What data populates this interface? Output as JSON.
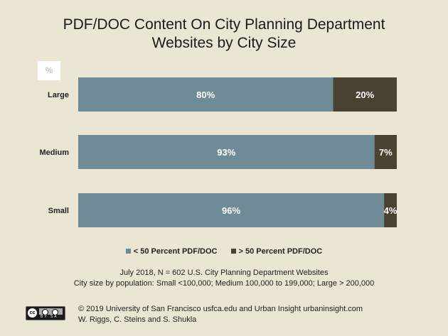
{
  "chart_data": {
    "type": "bar",
    "orientation": "horizontal",
    "stacked": true,
    "title_lines": [
      "PDF/DOC Content On City Planning Department",
      "Websites by City Size"
    ],
    "unit_label": "%",
    "categories": [
      "Large",
      "Medium",
      "Small"
    ],
    "series": [
      {
        "name": "< 50 Percent PDF/DOC",
        "values": [
          80,
          93,
          96
        ],
        "labels": [
          "80%",
          "93%",
          "96%"
        ],
        "color": "#6e8b96"
      },
      {
        "name": "> 50 Percent PDF/DOC",
        "values": [
          20,
          7,
          4
        ],
        "labels": [
          "20%",
          "7%",
          "4%"
        ],
        "color": "#4a4230"
      }
    ],
    "xlim": [
      0,
      100
    ],
    "grid": false,
    "legend_position": "bottom"
  },
  "notes": {
    "line1": "July 2018, N = 602 U.S. City Planning Department Websites",
    "line2": "City size by population:  Small <100,000; Medium 100,000 to 199,000; Large > 200,000"
  },
  "footer": {
    "line1": "© 2019 University of San Francisco usfca.edu and Urban Insight urbaninsight.com",
    "line2": "W. Riggs, C. Steins and S. Shukla"
  },
  "license_badge": {
    "text": "BY SA",
    "icon": "creative-commons-icon"
  },
  "colors": {
    "background": "#ebe5d3"
  }
}
